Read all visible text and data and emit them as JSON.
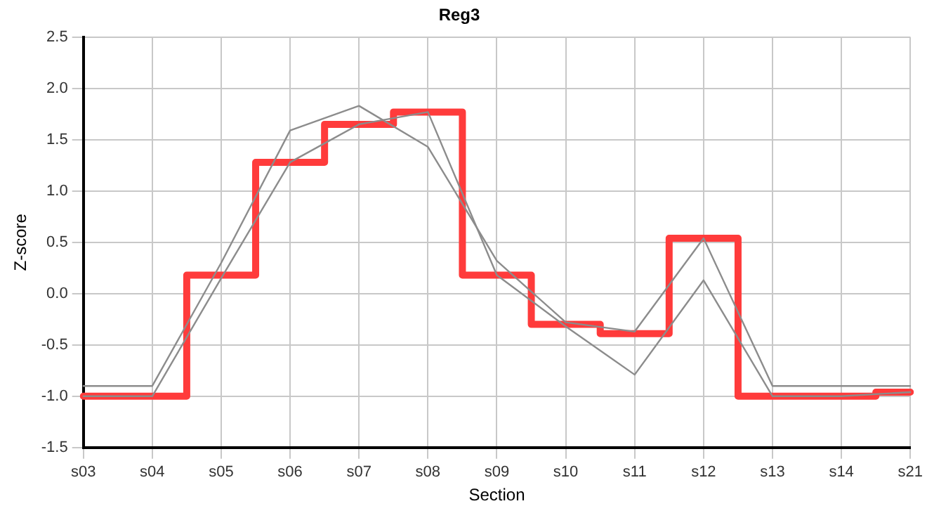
{
  "chart_data": {
    "type": "line",
    "title": "Reg3",
    "xlabel": "Section",
    "ylabel": "Z-score",
    "categories": [
      "s03",
      "s04",
      "s05",
      "s06",
      "s07",
      "s08",
      "s09",
      "s10",
      "s11",
      "s12",
      "s13",
      "s14",
      "s21"
    ],
    "series": [
      {
        "type": "line",
        "color": "#8c8c8c",
        "values": [
          -0.9,
          -0.9,
          0.3,
          1.59,
          1.83,
          1.43,
          0.32,
          -0.28,
          -0.37,
          0.54,
          -0.9,
          -0.9,
          -0.9
        ]
      },
      {
        "type": "line",
        "color": "#8c8c8c",
        "values": [
          -1.0,
          -1.0,
          0.15,
          1.28,
          1.65,
          1.77,
          0.18,
          -0.32,
          -0.79,
          0.13,
          -1.0,
          -1.0,
          -0.96
        ]
      },
      {
        "type": "step",
        "color": "#ff3b3b",
        "values": [
          -1.0,
          -1.0,
          0.18,
          1.28,
          1.65,
          1.77,
          0.18,
          -0.3,
          -0.39,
          0.54,
          -1.0,
          -1.0,
          -0.96
        ]
      }
    ],
    "ylim": [
      -1.5,
      2.5
    ],
    "yticks": [
      -1.5,
      {
        "value": -1,
        "label": "-1.0"
      },
      -0.5,
      {
        "value": 0,
        "label": "0.0"
      },
      0.5,
      {
        "value": 1,
        "label": "1.0"
      },
      1.5,
      {
        "value": 2,
        "label": "2.0"
      },
      2.5
    ],
    "grid": true,
    "legend": false,
    "marker": "none"
  }
}
